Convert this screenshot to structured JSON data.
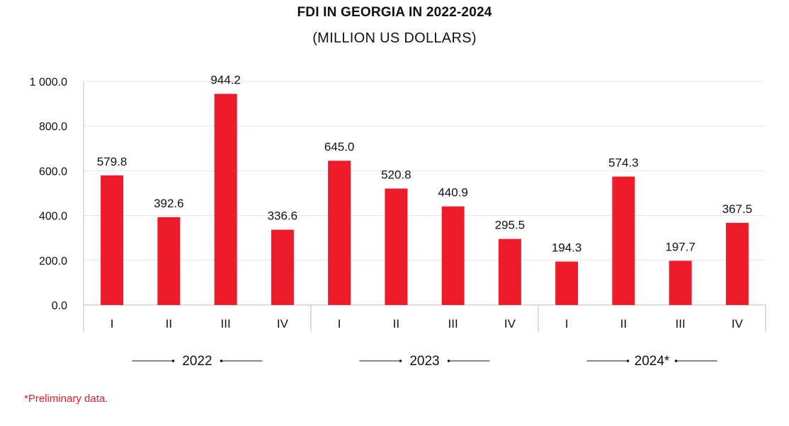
{
  "header": {
    "title": "FDI IN GEORGIA IN 2022-2024",
    "subtitle": "(MILLION US DOLLARS)"
  },
  "footnote": "*Preliminary data.",
  "colors": {
    "bar": "#ee1c2b",
    "grid": "#e3e3e3",
    "axis": "#bdbdbd",
    "text": "#111111",
    "footnote": "#e11d2a"
  },
  "chart_data": {
    "type": "bar",
    "categories": [
      "I",
      "II",
      "III",
      "IV",
      "I",
      "II",
      "III",
      "IV",
      "I",
      "II",
      "III",
      "IV"
    ],
    "groups": [
      {
        "label": "2022",
        "quarters": [
          "I",
          "II",
          "III",
          "IV"
        ]
      },
      {
        "label": "2023",
        "quarters": [
          "I",
          "II",
          "III",
          "IV"
        ]
      },
      {
        "label": "2024*",
        "quarters": [
          "I",
          "II",
          "III",
          "IV"
        ]
      }
    ],
    "values": [
      579.8,
      392.6,
      944.2,
      336.6,
      645.0,
      520.8,
      440.9,
      295.5,
      194.3,
      574.3,
      197.7,
      367.5
    ],
    "value_labels": [
      "579.8",
      "392.6",
      "944.2",
      "336.6",
      "645.0",
      "520.8",
      "440.9",
      "295.5",
      "194.3",
      "574.3",
      "197.7",
      "367.5"
    ],
    "y_ticks": [
      "0.0",
      "200.0",
      "400.0",
      "600.0",
      "800.0",
      "1 000.0"
    ],
    "ylim": [
      0,
      1000
    ],
    "grid": true,
    "title": "FDI IN GEORGIA IN 2022-2024",
    "subtitle": "(MILLION US DOLLARS)",
    "xlabel": "",
    "ylabel": ""
  }
}
